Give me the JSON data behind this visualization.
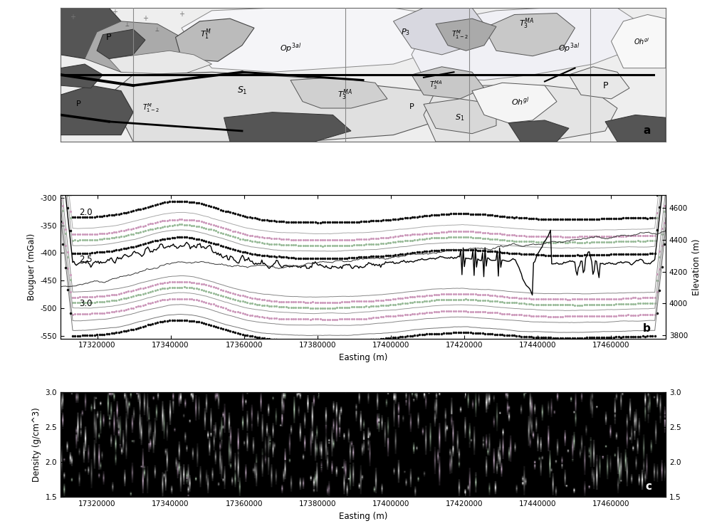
{
  "x_min": 17310000,
  "x_max": 17475000,
  "bouguer_ylim": [
    -555,
    -295
  ],
  "bouguer_yticks": [
    -550,
    -500,
    -450,
    -400,
    -350,
    -300
  ],
  "elevation_ylim": [
    3780,
    4680
  ],
  "elevation_yticks": [
    3800,
    4000,
    4200,
    4400,
    4600
  ],
  "density_ylim": [
    1.5,
    3.0
  ],
  "density_yticks": [
    1.5,
    2.0,
    2.5,
    3.0
  ],
  "xticks": [
    17320000,
    17340000,
    17360000,
    17380000,
    17400000,
    17420000,
    17440000,
    17460000
  ],
  "xlabel": "Easting (m)",
  "bouguer_ylabel": "Bouguer (mGal)",
  "density_ylabel": "Density (g/cm^3)",
  "elevation_ylabel": "Elevation (m)",
  "panel_labels": [
    "a",
    "b",
    "c"
  ],
  "map_bg": "#f0f0f0",
  "map_light_gray": "#d8d8d8",
  "map_mid_gray": "#aaaaaa",
  "map_dark_gray": "#555555",
  "map_white": "#f8f8f8",
  "map_pink": "#e8d8e0",
  "map_dotted_region": "#e0dce8"
}
